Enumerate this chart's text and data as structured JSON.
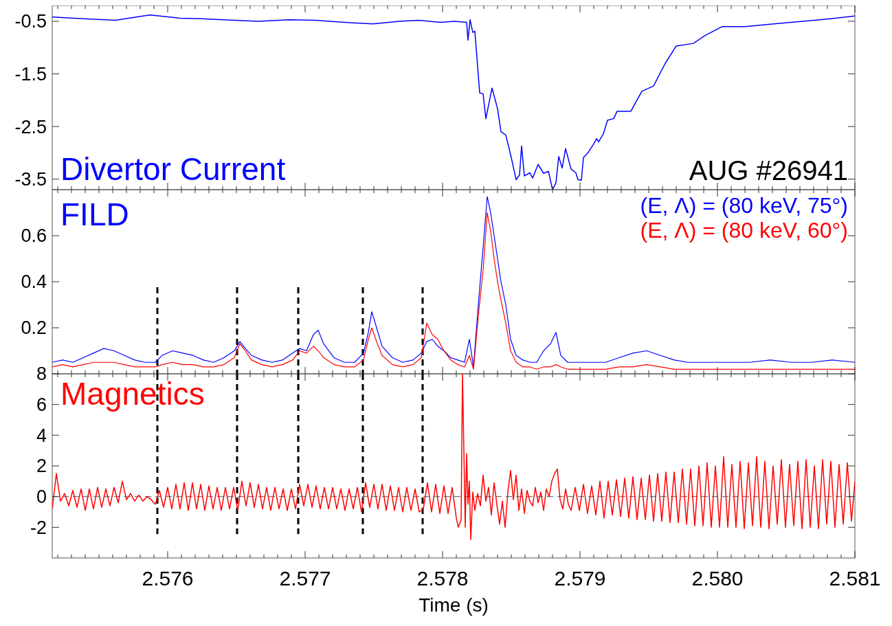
{
  "chart_data": [
    {
      "type": "line",
      "xlim": [
        2.57516,
        2.581
      ],
      "ylim": [
        -3.7,
        -0.2
      ],
      "yticks": [
        -0.5,
        -1.5,
        -2.5,
        -3.5
      ],
      "tick_labels": "y",
      "legend": "bottom left",
      "xticks": [
        {
          "value": 2.5752,
          "label": null
        },
        {
          "value": 2.5753,
          "label": null
        },
        {
          "value": 2.5754,
          "label": null
        },
        {
          "value": 2.5755,
          "label": null
        },
        {
          "value": 2.5756,
          "label": null
        },
        {
          "value": 2.5757,
          "label": null
        },
        {
          "value": 2.5758,
          "label": null
        },
        {
          "value": 2.5759,
          "label": null
        },
        2.576,
        {
          "value": 2.5761,
          "label": null
        },
        {
          "value": 2.5762,
          "label": null
        },
        {
          "value": 2.5763,
          "label": null
        },
        {
          "value": 2.5764,
          "label": null
        },
        {
          "value": 2.5765,
          "label": null
        },
        {
          "value": 2.5766,
          "label": null
        },
        {
          "value": 2.5767,
          "label": null
        },
        {
          "value": 2.5768,
          "label": null
        },
        {
          "value": 2.5769,
          "label": null
        },
        2.577,
        {
          "value": 2.5771,
          "label": null
        },
        {
          "value": 2.5772,
          "label": null
        },
        {
          "value": 2.5773,
          "label": null
        },
        {
          "value": 2.5774,
          "label": null
        },
        {
          "value": 2.5775,
          "label": null
        },
        {
          "value": 2.5776,
          "label": null
        },
        {
          "value": 2.5777,
          "label": null
        },
        {
          "value": 2.5778,
          "label": null
        },
        {
          "value": 2.5779,
          "label": null
        },
        2.578,
        {
          "value": 2.5781,
          "label": null
        },
        {
          "value": 2.5782,
          "label": null
        },
        {
          "value": 2.5783,
          "label": null
        },
        {
          "value": 2.5784,
          "label": null
        },
        {
          "value": 2.5785,
          "label": null
        },
        {
          "value": 2.5786,
          "label": null
        },
        {
          "value": 2.5787,
          "label": null
        },
        {
          "value": 2.5788,
          "label": null
        },
        {
          "value": 2.5789,
          "label": null
        },
        2.579,
        {
          "value": 2.5791,
          "label": null
        },
        {
          "value": 2.5792,
          "label": null
        },
        {
          "value": 2.5793,
          "label": null
        },
        {
          "value": 2.5794,
          "label": null
        },
        {
          "value": 2.5795,
          "label": null
        },
        {
          "value": 2.5796,
          "label": null
        },
        {
          "value": 2.5797,
          "label": null
        },
        {
          "value": 2.5798,
          "label": null
        },
        {
          "value": 2.5799,
          "label": null
        },
        2.58,
        {
          "value": 2.5801,
          "label": null
        },
        {
          "value": 2.5802,
          "label": null
        },
        {
          "value": 2.5803,
          "label": null
        },
        {
          "value": 2.5804,
          "label": null
        },
        {
          "value": 2.5805,
          "label": null
        },
        {
          "value": 2.5806,
          "label": null
        },
        {
          "value": 2.5807,
          "label": null
        },
        {
          "value": 2.5808,
          "label": null
        },
        {
          "value": 2.5809,
          "label": null
        },
        2.581
      ],
      "annotations": [
        "AUG #26941"
      ],
      "series": [
        {
          "name": "Divertor Current",
          "color": "#0000ff",
          "x": [
            2.57516,
            2.575385,
            2.57562,
            2.57587,
            2.576085,
            2.576245,
            2.576485,
            2.57666,
            2.576885,
            2.577075,
            2.577285,
            2.577495,
            2.577685,
            2.577825,
            2.577985,
            2.578085,
            2.578175,
            2.578185,
            2.5782,
            2.57822,
            2.578235,
            2.57827,
            2.578295,
            2.578315,
            2.57836,
            2.5784,
            2.578425,
            2.57846,
            2.5785,
            2.578535,
            2.57856,
            2.578575,
            2.578595,
            2.578635,
            2.578655,
            2.578695,
            2.578735,
            2.57877,
            2.5788,
            2.578825,
            2.578845,
            2.57887,
            2.578895,
            2.578935,
            2.57897,
            2.578985,
            2.57901,
            2.579025,
            2.57906,
            2.5791,
            2.57912,
            2.579135,
            2.57917,
            2.5792,
            2.579245,
            2.57927,
            2.57937,
            2.57945,
            2.579535,
            2.57962,
            2.5797,
            2.579825,
            2.57991,
            2.580035,
            2.5802,
            2.58041,
            2.58062,
            2.580825,
            2.581
          ],
          "values": [
            -0.42,
            -0.45,
            -0.48,
            -0.38,
            -0.44,
            -0.45,
            -0.48,
            -0.5,
            -0.47,
            -0.48,
            -0.52,
            -0.55,
            -0.5,
            -0.48,
            -0.52,
            -0.5,
            -0.52,
            -0.86,
            -0.47,
            -0.71,
            -0.69,
            -1.86,
            -1.88,
            -2.35,
            -1.77,
            -2.16,
            -2.6,
            -2.66,
            -3.09,
            -3.51,
            -3.42,
            -2.87,
            -3.44,
            -3.38,
            -3.48,
            -3.22,
            -3.39,
            -3.35,
            -3.7,
            -3.57,
            -3.07,
            -3.29,
            -2.92,
            -3.31,
            -3.38,
            -3.51,
            -3.52,
            -3.09,
            -2.99,
            -2.83,
            -2.73,
            -2.79,
            -2.64,
            -2.38,
            -2.35,
            -2.21,
            -2.21,
            -1.83,
            -1.73,
            -1.3,
            -0.97,
            -0.92,
            -0.77,
            -0.6,
            -0.6,
            -0.55,
            -0.5,
            -0.45,
            -0.4
          ]
        }
      ]
    },
    {
      "type": "line",
      "title": "FILD",
      "xlim": [
        2.57516,
        2.581
      ],
      "ylim": [
        0,
        0.8
      ],
      "yticks": [
        0.2,
        0.4,
        0.6
      ],
      "tick_labels": "y",
      "legend": "top right",
      "xticks": [
        {
          "value": 2.5752,
          "label": null
        },
        {
          "value": 2.5753,
          "label": null
        },
        {
          "value": 2.5754,
          "label": null
        },
        {
          "value": 2.5755,
          "label": null
        },
        {
          "value": 2.5756,
          "label": null
        },
        {
          "value": 2.5757,
          "label": null
        },
        {
          "value": 2.5758,
          "label": null
        },
        {
          "value": 2.5759,
          "label": null
        },
        2.576,
        {
          "value": 2.5761,
          "label": null
        },
        {
          "value": 2.5762,
          "label": null
        },
        {
          "value": 2.5763,
          "label": null
        },
        {
          "value": 2.5764,
          "label": null
        },
        {
          "value": 2.5765,
          "label": null
        },
        {
          "value": 2.5766,
          "label": null
        },
        {
          "value": 2.5767,
          "label": null
        },
        {
          "value": 2.5768,
          "label": null
        },
        {
          "value": 2.5769,
          "label": null
        },
        2.577,
        {
          "value": 2.5771,
          "label": null
        },
        {
          "value": 2.5772,
          "label": null
        },
        {
          "value": 2.5773,
          "label": null
        },
        {
          "value": 2.5774,
          "label": null
        },
        {
          "value": 2.5775,
          "label": null
        },
        {
          "value": 2.5776,
          "label": null
        },
        {
          "value": 2.5777,
          "label": null
        },
        {
          "value": 2.5778,
          "label": null
        },
        {
          "value": 2.5779,
          "label": null
        },
        2.578,
        {
          "value": 2.5781,
          "label": null
        },
        {
          "value": 2.5782,
          "label": null
        },
        {
          "value": 2.5783,
          "label": null
        },
        {
          "value": 2.5784,
          "label": null
        },
        {
          "value": 2.5785,
          "label": null
        },
        {
          "value": 2.5786,
          "label": null
        },
        {
          "value": 2.5787,
          "label": null
        },
        {
          "value": 2.5788,
          "label": null
        },
        {
          "value": 2.5789,
          "label": null
        },
        2.579,
        {
          "value": 2.5791,
          "label": null
        },
        {
          "value": 2.5792,
          "label": null
        },
        {
          "value": 2.5793,
          "label": null
        },
        {
          "value": 2.5794,
          "label": null
        },
        {
          "value": 2.5795,
          "label": null
        },
        {
          "value": 2.5796,
          "label": null
        },
        {
          "value": 2.5797,
          "label": null
        },
        {
          "value": 2.5798,
          "label": null
        },
        {
          "value": 2.5799,
          "label": null
        },
        2.58,
        {
          "value": 2.5801,
          "label": null
        },
        {
          "value": 2.5802,
          "label": null
        },
        {
          "value": 2.5803,
          "label": null
        },
        {
          "value": 2.5804,
          "label": null
        },
        {
          "value": 2.5805,
          "label": null
        },
        {
          "value": 2.5806,
          "label": null
        },
        {
          "value": 2.5807,
          "label": null
        },
        {
          "value": 2.5808,
          "label": null
        },
        {
          "value": 2.5809,
          "label": null
        },
        2.581
      ],
      "x": [
        2.57516,
        2.575235,
        2.57531,
        2.575385,
        2.57546,
        2.575535,
        2.57561,
        2.575685,
        2.57576,
        2.575835,
        2.57591,
        2.57596,
        2.576035,
        2.57611,
        2.576185,
        2.57626,
        2.576335,
        2.57641,
        2.576485,
        2.576525,
        2.576565,
        2.57661,
        2.576685,
        2.57676,
        2.576835,
        2.57691,
        2.57696,
        2.57701,
        2.57706,
        2.577095,
        2.577135,
        2.57721,
        2.577285,
        2.57736,
        2.577425,
        2.57746,
        2.577485,
        2.57752,
        2.57756,
        2.577635,
        2.57771,
        2.577785,
        2.577845,
        2.577885,
        2.577925,
        2.577965,
        2.57801,
        2.57806,
        2.57811,
        2.57816,
        2.578195,
        2.578225,
        2.57826,
        2.578295,
        2.578325,
        2.57835,
        2.578375,
        2.5784,
        2.578425,
        2.57846,
        2.578495,
        2.578535,
        2.578585,
        2.578635,
        2.578685,
        2.578735,
        2.578785,
        2.578825,
        2.57886,
        2.57891,
        2.578985,
        2.579085,
        2.579185,
        2.579285,
        2.579385,
        2.579485,
        2.579585,
        2.579685,
        2.579785,
        2.579935,
        2.580085,
        2.580235,
        2.580385,
        2.580535,
        2.580685,
        2.580835,
        2.581
      ],
      "ref_lines": [
        {
          "axis": "x",
          "value": 2.575925,
          "color": "#000000",
          "line_style": "dashed"
        },
        {
          "axis": "x",
          "value": 2.576505,
          "color": "#000000",
          "line_style": "dashed"
        },
        {
          "axis": "x",
          "value": 2.57695,
          "color": "#000000",
          "line_style": "dashed"
        },
        {
          "axis": "x",
          "value": 2.57742,
          "color": "#000000",
          "line_style": "dashed"
        },
        {
          "axis": "x",
          "value": 2.577855,
          "color": "#000000",
          "line_style": "dashed"
        }
      ],
      "series": [
        {
          "name": "(E, Λ) = (80 keV, 75°)",
          "color": "#0000ff",
          "values": [
            0.05,
            0.06,
            0.05,
            0.07,
            0.09,
            0.11,
            0.1,
            0.08,
            0.06,
            0.05,
            0.05,
            0.08,
            0.1,
            0.09,
            0.08,
            0.06,
            0.05,
            0.07,
            0.1,
            0.14,
            0.11,
            0.08,
            0.06,
            0.05,
            0.06,
            0.09,
            0.11,
            0.1,
            0.17,
            0.19,
            0.13,
            0.07,
            0.05,
            0.05,
            0.09,
            0.18,
            0.27,
            0.2,
            0.12,
            0.07,
            0.05,
            0.06,
            0.09,
            0.14,
            0.15,
            0.12,
            0.1,
            0.07,
            0.06,
            0.05,
            0.15,
            0.03,
            0.3,
            0.55,
            0.77,
            0.7,
            0.6,
            0.5,
            0.4,
            0.3,
            0.15,
            0.08,
            0.06,
            0.05,
            0.05,
            0.1,
            0.13,
            0.18,
            0.08,
            0.05,
            0.05,
            0.05,
            0.05,
            0.07,
            0.09,
            0.1,
            0.08,
            0.06,
            0.05,
            0.05,
            0.05,
            0.05,
            0.06,
            0.05,
            0.05,
            0.06,
            0.05
          ]
        },
        {
          "name": "(E, Λ) = (80 keV, 60°)",
          "color": "#ff0000",
          "values": [
            0.03,
            0.04,
            0.03,
            0.04,
            0.05,
            0.05,
            0.05,
            0.04,
            0.03,
            0.03,
            0.03,
            0.04,
            0.05,
            0.04,
            0.04,
            0.03,
            0.03,
            0.04,
            0.07,
            0.13,
            0.1,
            0.06,
            0.04,
            0.03,
            0.04,
            0.06,
            0.1,
            0.09,
            0.12,
            0.1,
            0.07,
            0.04,
            0.03,
            0.03,
            0.06,
            0.15,
            0.2,
            0.14,
            0.08,
            0.04,
            0.03,
            0.04,
            0.07,
            0.22,
            0.17,
            0.15,
            0.1,
            0.06,
            0.04,
            0.03,
            0.08,
            0.02,
            0.25,
            0.45,
            0.7,
            0.62,
            0.5,
            0.4,
            0.32,
            0.22,
            0.1,
            0.05,
            0.03,
            0.03,
            0.02,
            0.03,
            0.03,
            0.04,
            0.03,
            0.02,
            0.02,
            0.02,
            0.02,
            0.03,
            0.03,
            0.04,
            0.03,
            0.02,
            0.02,
            0.02,
            0.02,
            0.02,
            0.02,
            0.02,
            0.02,
            0.02,
            0.02
          ]
        }
      ]
    },
    {
      "type": "line",
      "xlabel": "Time (s)",
      "xlim": [
        2.57516,
        2.581
      ],
      "ylim": [
        -4,
        8
      ],
      "yticks": [
        -2,
        0,
        2,
        4,
        6,
        8
      ],
      "legend": "top left",
      "xticks": [
        {
          "value": 2.5752,
          "label": null
        },
        {
          "value": 2.5753,
          "label": null
        },
        {
          "value": 2.5754,
          "label": null
        },
        {
          "value": 2.5755,
          "label": null
        },
        {
          "value": 2.5756,
          "label": null
        },
        {
          "value": 2.5757,
          "label": null
        },
        {
          "value": 2.5758,
          "label": null
        },
        {
          "value": 2.5759,
          "label": null
        },
        2.576,
        {
          "value": 2.5761,
          "label": null
        },
        {
          "value": 2.5762,
          "label": null
        },
        {
          "value": 2.5763,
          "label": null
        },
        {
          "value": 2.5764,
          "label": null
        },
        {
          "value": 2.5765,
          "label": null
        },
        {
          "value": 2.5766,
          "label": null
        },
        {
          "value": 2.5767,
          "label": null
        },
        {
          "value": 2.5768,
          "label": null
        },
        {
          "value": 2.5769,
          "label": null
        },
        2.577,
        {
          "value": 2.5771,
          "label": null
        },
        {
          "value": 2.5772,
          "label": null
        },
        {
          "value": 2.5773,
          "label": null
        },
        {
          "value": 2.5774,
          "label": null
        },
        {
          "value": 2.5775,
          "label": null
        },
        {
          "value": 2.5776,
          "label": null
        },
        {
          "value": 2.5777,
          "label": null
        },
        {
          "value": 2.5778,
          "label": null
        },
        {
          "value": 2.5779,
          "label": null
        },
        2.578,
        {
          "value": 2.5781,
          "label": null
        },
        {
          "value": 2.5782,
          "label": null
        },
        {
          "value": 2.5783,
          "label": null
        },
        {
          "value": 2.5784,
          "label": null
        },
        {
          "value": 2.5785,
          "label": null
        },
        {
          "value": 2.5786,
          "label": null
        },
        {
          "value": 2.5787,
          "label": null
        },
        {
          "value": 2.5788,
          "label": null
        },
        {
          "value": 2.5789,
          "label": null
        },
        2.579,
        {
          "value": 2.5791,
          "label": null
        },
        {
          "value": 2.5792,
          "label": null
        },
        {
          "value": 2.5793,
          "label": null
        },
        {
          "value": 2.5794,
          "label": null
        },
        {
          "value": 2.5795,
          "label": null
        },
        {
          "value": 2.5796,
          "label": null
        },
        {
          "value": 2.5797,
          "label": null
        },
        {
          "value": 2.5798,
          "label": null
        },
        {
          "value": 2.5799,
          "label": null
        },
        {
          "value": 2.58,
          "label": "2.580"
        },
        {
          "value": 2.5801,
          "label": null
        },
        {
          "value": 2.5802,
          "label": null
        },
        {
          "value": 2.5803,
          "label": null
        },
        {
          "value": 2.5804,
          "label": null
        },
        {
          "value": 2.5805,
          "label": null
        },
        {
          "value": 2.5806,
          "label": null
        },
        {
          "value": 2.5807,
          "label": null
        },
        {
          "value": 2.5808,
          "label": null
        },
        {
          "value": 2.5809,
          "label": null
        },
        2.581
      ],
      "ref_lines": [
        {
          "axis": "y",
          "value": 0,
          "color": "#555555",
          "line_style": "dashed"
        },
        {
          "axis": "x",
          "value": 2.575925,
          "color": "#000000",
          "line_style": "dashed"
        },
        {
          "axis": "x",
          "value": 2.576505,
          "color": "#000000",
          "line_style": "dashed"
        },
        {
          "axis": "x",
          "value": 2.57695,
          "color": "#000000",
          "line_style": "dashed"
        },
        {
          "axis": "x",
          "value": 2.57742,
          "color": "#000000",
          "line_style": "dashed"
        },
        {
          "axis": "x",
          "value": 2.577855,
          "color": "#000000",
          "line_style": "dashed"
        }
      ],
      "series": [
        {
          "name": "Magnetics",
          "color": "#ff0000",
          "x": [
            2.57516,
            2.57519,
            2.57522,
            2.57525,
            2.57528,
            2.57531,
            2.57534,
            2.57537,
            2.5754,
            2.57543,
            2.57546,
            2.57549,
            2.57552,
            2.57555,
            2.57558,
            2.57561,
            2.57564,
            2.57567,
            2.5757,
            2.57573,
            2.57576,
            2.57579,
            2.57582,
            2.57585,
            2.57588,
            2.57591,
            2.57594,
            2.57597,
            2.576,
            2.57603,
            2.57606,
            2.57609,
            2.57612,
            2.57615,
            2.57618,
            2.57621,
            2.57624,
            2.57627,
            2.5763,
            2.57633,
            2.57636,
            2.57639,
            2.57642,
            2.57645,
            2.57648,
            2.57651,
            2.57654,
            2.57657,
            2.5766,
            2.57663,
            2.57666,
            2.57669,
            2.57672,
            2.57675,
            2.57678,
            2.57681,
            2.57684,
            2.57687,
            2.5769,
            2.57693,
            2.57696,
            2.57699,
            2.57702,
            2.57705,
            2.57708,
            2.57711,
            2.57714,
            2.57717,
            2.5772,
            2.57723,
            2.57726,
            2.57729,
            2.57732,
            2.57735,
            2.57738,
            2.57741,
            2.57744,
            2.57747,
            2.5775,
            2.57753,
            2.57756,
            2.57759,
            2.57762,
            2.57765,
            2.57768,
            2.57771,
            2.57774,
            2.57777,
            2.5778,
            2.57783,
            2.57786,
            2.57789,
            2.57792,
            2.57795,
            2.57798,
            2.57801,
            2.57804,
            2.57807,
            2.5781,
            2.578115,
            2.578135,
            2.578145,
            2.578155,
            2.578165,
            2.578175,
            2.578185,
            2.578195,
            2.578205,
            2.57822,
            2.578235,
            2.578255,
            2.578275,
            2.578295,
            2.578315,
            2.578335,
            2.578355,
            2.578375,
            2.578395,
            2.578415,
            2.578435,
            2.578455,
            2.578475,
            2.578495,
            2.578515,
            2.578535,
            2.578555,
            2.578575,
            2.578595,
            2.578615,
            2.578635,
            2.578655,
            2.578675,
            2.578695,
            2.578715,
            2.578735,
            2.578755,
            2.578775,
            2.578795,
            2.578815,
            2.578835,
            2.578855,
            2.578875,
            2.578895,
            2.578915,
            2.578935,
            2.578965,
            2.578995,
            2.579025,
            2.579055,
            2.579085,
            2.579115,
            2.579145,
            2.579175,
            2.579205,
            2.579235,
            2.579265,
            2.579295,
            2.579325,
            2.579355,
            2.579385,
            2.579415,
            2.579445,
            2.579475,
            2.579505,
            2.579535,
            2.579565,
            2.579595,
            2.579625,
            2.579655,
            2.579685,
            2.579715,
            2.579745,
            2.579775,
            2.579805,
            2.579835,
            2.579865,
            2.579895,
            2.579925,
            2.579955,
            2.579985,
            2.580015,
            2.580045,
            2.580075,
            2.580105,
            2.580135,
            2.580165,
            2.580195,
            2.580225,
            2.580255,
            2.580285,
            2.580315,
            2.580345,
            2.580375,
            2.580405,
            2.580435,
            2.580465,
            2.580495,
            2.580525,
            2.580555,
            2.580585,
            2.580615,
            2.580645,
            2.580675,
            2.580705,
            2.580735,
            2.580765,
            2.580795,
            2.580825,
            2.580855,
            2.580885,
            2.580915,
            2.580945,
            2.580975,
            2.581
          ],
          "values": [
            -0.8,
            1.5,
            -0.3,
            0.2,
            -0.6,
            0.4,
            -0.7,
            0.5,
            -0.9,
            0.5,
            -0.8,
            0.6,
            -0.7,
            0.5,
            -0.6,
            0.6,
            -0.4,
            1.0,
            -0.2,
            0.2,
            -0.3,
            0.1,
            -0.3,
            0.0,
            -0.2,
            -0.5,
            0.4,
            -0.7,
            0.6,
            -0.8,
            0.8,
            -0.8,
            0.9,
            -0.9,
            0.9,
            -0.8,
            0.8,
            -0.9,
            0.7,
            -0.8,
            0.6,
            -0.9,
            0.6,
            -0.8,
            0.6,
            -0.9,
            1.0,
            -0.6,
            0.9,
            -0.7,
            0.8,
            -0.8,
            0.6,
            -0.9,
            0.6,
            -0.8,
            0.5,
            -0.9,
            0.5,
            -0.8,
            0.8,
            -0.6,
            0.8,
            -0.7,
            0.7,
            -0.8,
            0.6,
            -0.8,
            0.6,
            -0.8,
            0.5,
            -0.9,
            0.5,
            -0.8,
            0.6,
            -1.0,
            0.9,
            -0.7,
            0.8,
            -0.8,
            0.8,
            -0.9,
            0.7,
            -0.9,
            0.6,
            -1.0,
            0.6,
            -0.9,
            0.5,
            -1.0,
            -0.8,
            0.9,
            -1.0,
            0.8,
            -1.1,
            0.7,
            -1.1,
            0.6,
            -1.4,
            -2.0,
            -1.5,
            8.0,
            3.0,
            -2.0,
            2.8,
            -0.5,
            1.0,
            -2.8,
            0.3,
            -0.9,
            0.2,
            -0.6,
            1.4,
            -0.3,
            0.6,
            -1.2,
            0.9,
            -0.5,
            -1.8,
            -0.3,
            -2.0,
            0.3,
            1.7,
            -0.2,
            1.4,
            -0.9,
            0.5,
            -1.1,
            0.4,
            -0.3,
            -0.6,
            0.6,
            -0.4,
            0.3,
            -0.9,
            0.5,
            0.0,
            1.0,
            1.5,
            1.8,
            -0.2,
            -0.8,
            0.5,
            -0.5,
            -0.9,
            0.6,
            -0.9,
            0.8,
            -1.1,
            0.7,
            -1.2,
            1.0,
            -1.4,
            1.0,
            -1.2,
            1.1,
            -1.3,
            1.2,
            -1.4,
            1.3,
            -1.5,
            1.2,
            -1.5,
            1.4,
            -1.6,
            1.5,
            -1.6,
            1.6,
            -1.7,
            1.6,
            -1.7,
            1.8,
            -1.8,
            1.8,
            -1.9,
            2.0,
            -1.9,
            2.2,
            -2.0,
            2.0,
            -2.0,
            2.6,
            -2.0,
            2.1,
            -2.0,
            2.3,
            -2.1,
            2.2,
            -1.9,
            2.6,
            -2.0,
            2.3,
            -2.1,
            2.0,
            -1.8,
            2.4,
            -2.0,
            2.1,
            -1.9,
            2.3,
            -2.1,
            2.4,
            -2.0,
            2.0,
            -2.1,
            2.4,
            -1.8,
            2.3,
            -2.0,
            2.1,
            -1.8,
            2.2,
            -1.6,
            1.0
          ]
        }
      ]
    }
  ]
}
